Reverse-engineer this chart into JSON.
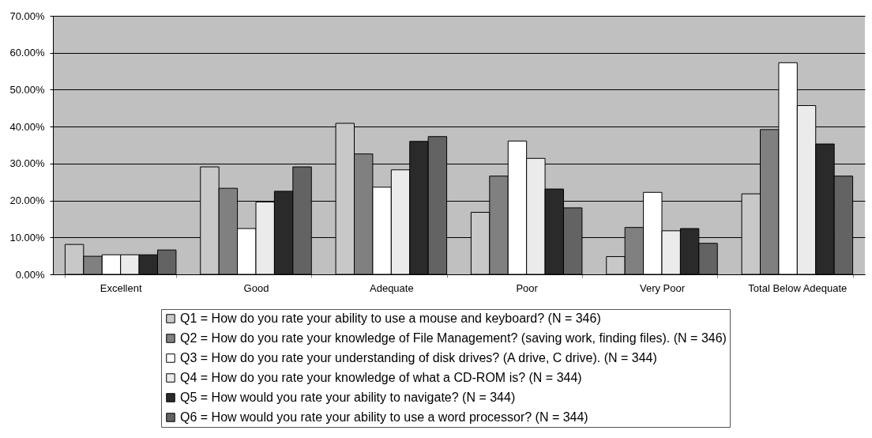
{
  "chart_data": {
    "type": "bar",
    "categories": [
      "Excellent",
      "Good",
      "Adequate",
      "Poor",
      "Very Poor",
      "Total Below Adequate"
    ],
    "series": [
      {
        "name": "Q1 = How do you rate your ability to use a mouse and keyboard? (N = 346)",
        "color": "#c8c8c8",
        "values": [
          8.1,
          29.1,
          40.9,
          16.8,
          4.8,
          21.8
        ]
      },
      {
        "name": "Q2 = How do you rate your knowledge of File Management? (saving work, finding files). (N = 346)",
        "color": "#808080",
        "values": [
          4.9,
          23.3,
          32.6,
          26.6,
          12.7,
          39.2
        ]
      },
      {
        "name": "Q3 = How do you rate your understanding of disk drives? (A drive, C drive). (N = 344)",
        "color": "#ffffff",
        "values": [
          5.3,
          12.4,
          23.6,
          36.1,
          22.2,
          57.3
        ]
      },
      {
        "name": "Q4 = How do you rate your knowledge of what a CD-ROM is? (N = 344)",
        "color": "#ebebeb",
        "values": [
          5.3,
          19.6,
          28.3,
          31.4,
          11.8,
          45.7
        ]
      },
      {
        "name": "Q5 = How would you rate your ability to navigate? (N = 344)",
        "color": "#2a2a2a",
        "values": [
          5.3,
          22.5,
          36.0,
          23.1,
          12.4,
          35.3
        ]
      },
      {
        "name": "Q6 = How would you rate your ability to use a word processor? (N = 344)",
        "color": "#636363",
        "values": [
          6.6,
          29.1,
          37.3,
          18.0,
          8.4,
          26.6
        ]
      }
    ],
    "ylim": [
      0,
      70
    ],
    "yticks": [
      {
        "value": 0,
        "label": "0.00%"
      },
      {
        "value": 10,
        "label": "10.00%"
      },
      {
        "value": 20,
        "label": "20.00%"
      },
      {
        "value": 30,
        "label": "30.00%"
      },
      {
        "value": 40,
        "label": "40.00%"
      },
      {
        "value": 50,
        "label": "50.00%"
      },
      {
        "value": 60,
        "label": "60.00%"
      },
      {
        "value": 70,
        "label": "70.00%"
      }
    ],
    "grid": "y",
    "legend": "bottom"
  }
}
